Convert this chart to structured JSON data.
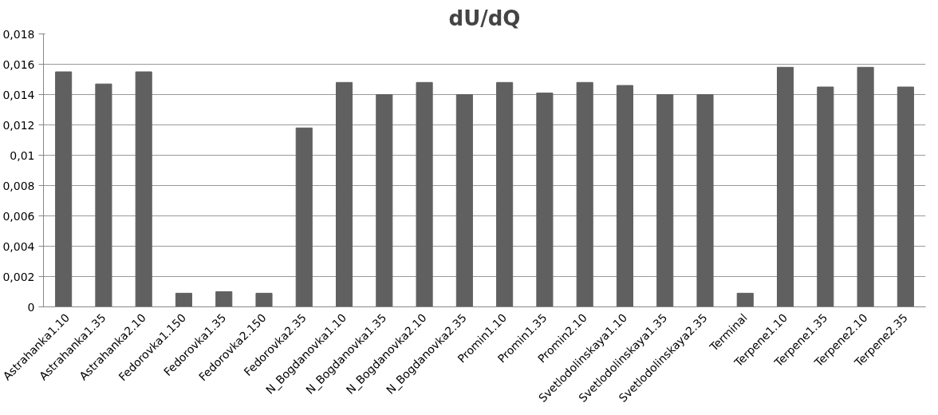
{
  "chart_data": {
    "type": "bar",
    "title": "dU/dQ",
    "categories": [
      "Astrahanka1.10",
      "Astrahanka1.35",
      "Astrahanka2.10",
      "Fedorovka1.150",
      "Fedorovka1.35",
      "Fedorovka2.150",
      "Fedorovka2.35",
      "N_Bogdanovka1.10",
      "N_Bogdanovka1.35",
      "N_Bogdanovka2.10",
      "N_Bogdanovka2.35",
      "Promin1.10",
      "Promin1.35",
      "Promin2.10",
      "Svetlodolinskaya1.10",
      "Svetlodolinskaya1.35",
      "Svetlodolinskaya2.35",
      "Terminal",
      "Terpene1.10",
      "Terpene1.35",
      "Terpene2.10",
      "Terpene2.35"
    ],
    "values": [
      0.0155,
      0.0147,
      0.0155,
      0.0009,
      0.001,
      0.0009,
      0.0118,
      0.0148,
      0.014,
      0.0148,
      0.014,
      0.0148,
      0.0141,
      0.0148,
      0.0146,
      0.014,
      0.014,
      0.0009,
      0.0158,
      0.0145,
      0.0158,
      0.0145
    ],
    "color": "#606060",
    "ylim": [
      0,
      0.018
    ],
    "yticks": [
      {
        "value": 0,
        "label": "0"
      },
      {
        "value": 0.002,
        "label": "0,002"
      },
      {
        "value": 0.004,
        "label": "0,004"
      },
      {
        "value": 0.006,
        "label": "0,006"
      },
      {
        "value": 0.008,
        "label": "0,008"
      },
      {
        "value": 0.01,
        "label": "0,01"
      },
      {
        "value": 0.012,
        "label": "0,012"
      },
      {
        "value": 0.014,
        "label": "0,014"
      },
      {
        "value": 0.016,
        "label": "0,016"
      },
      {
        "value": 0.018,
        "label": "0,018"
      }
    ],
    "grid": "y"
  }
}
